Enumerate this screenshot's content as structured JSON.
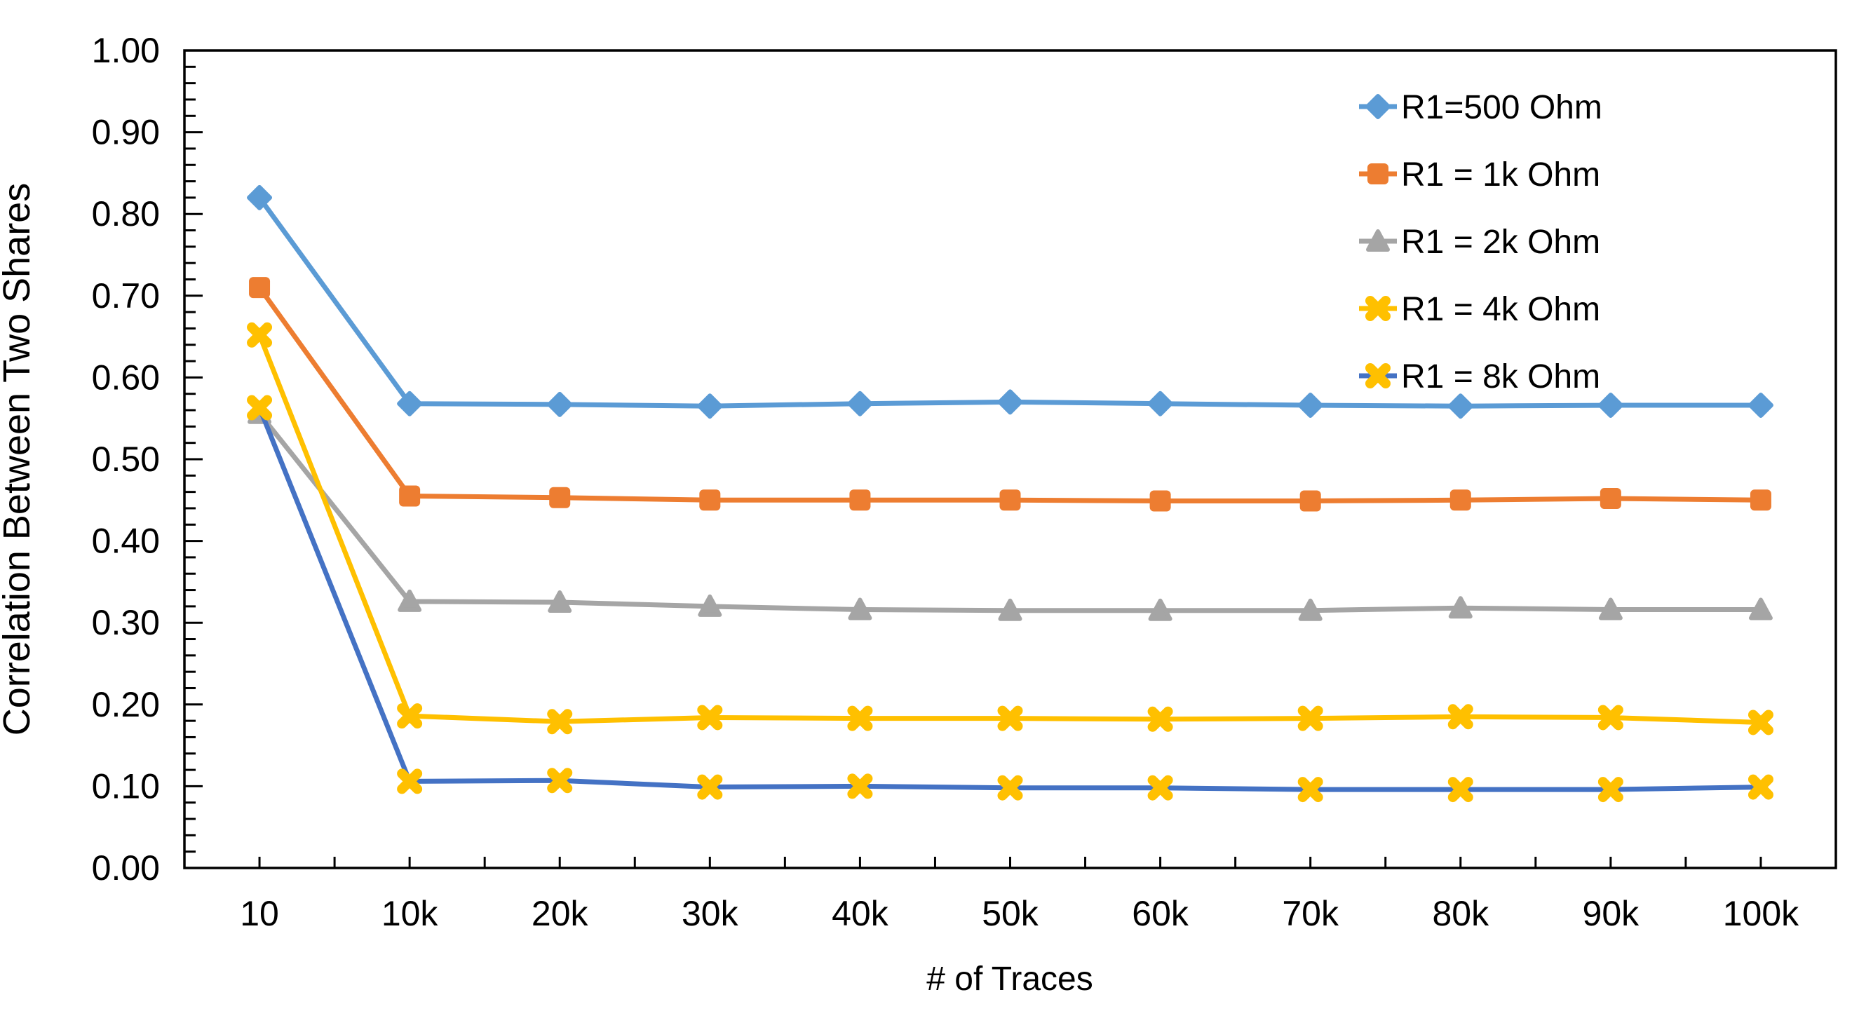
{
  "chart_data": {
    "type": "line",
    "title": "",
    "xlabel": "# of Traces",
    "ylabel": "Correlation Between Two Shares",
    "categories": [
      "10",
      "10k",
      "20k",
      "30k",
      "40k",
      "50k",
      "60k",
      "70k",
      "80k",
      "90k",
      "100k"
    ],
    "series": [
      {
        "name": "R1=500 Ohm",
        "line_color": "#5B9BD5",
        "marker": "diamond",
        "marker_color": "#5B9BD5",
        "values": [
          0.82,
          0.568,
          0.567,
          0.565,
          0.568,
          0.57,
          0.568,
          0.566,
          0.565,
          0.566,
          0.566
        ]
      },
      {
        "name": "R1 = 1k Ohm",
        "line_color": "#ED7D31",
        "marker": "square",
        "marker_color": "#ED7D31",
        "values": [
          0.71,
          0.455,
          0.453,
          0.45,
          0.45,
          0.45,
          0.449,
          0.449,
          0.45,
          0.452,
          0.45
        ]
      },
      {
        "name": "R1 = 2k Ohm",
        "line_color": "#A5A5A5",
        "marker": "triangle",
        "marker_color": "#A5A5A5",
        "values": [
          0.556,
          0.326,
          0.325,
          0.32,
          0.316,
          0.315,
          0.315,
          0.315,
          0.318,
          0.316,
          0.316
        ]
      },
      {
        "name": "R1 = 4k Ohm",
        "line_color": "#FFC000",
        "marker": "x",
        "marker_color": "#FFC000",
        "values": [
          0.652,
          0.186,
          0.179,
          0.184,
          0.183,
          0.183,
          0.182,
          0.183,
          0.185,
          0.184,
          0.178
        ]
      },
      {
        "name": "R1 = 8k Ohm",
        "line_color": "#4472C4",
        "marker": "x",
        "marker_color": "#FFC000",
        "values": [
          0.563,
          0.106,
          0.107,
          0.099,
          0.1,
          0.098,
          0.098,
          0.096,
          0.096,
          0.096,
          0.099
        ]
      }
    ],
    "y_axis": {
      "min": 0,
      "max": 1,
      "major_step": 0.1,
      "minor_step": 0.02,
      "tick_labels": [
        "0.00",
        "0.10",
        "0.20",
        "0.30",
        "0.40",
        "0.50",
        "0.60",
        "0.70",
        "0.80",
        "0.90",
        "1.00"
      ]
    },
    "x_axis": {
      "ticks_per_category": 2,
      "label_position": "center-of-category"
    },
    "legend_position": "top-right",
    "grid": false,
    "axis_color": "#000000",
    "text_color": "#000000",
    "background_color": "#ffffff"
  }
}
